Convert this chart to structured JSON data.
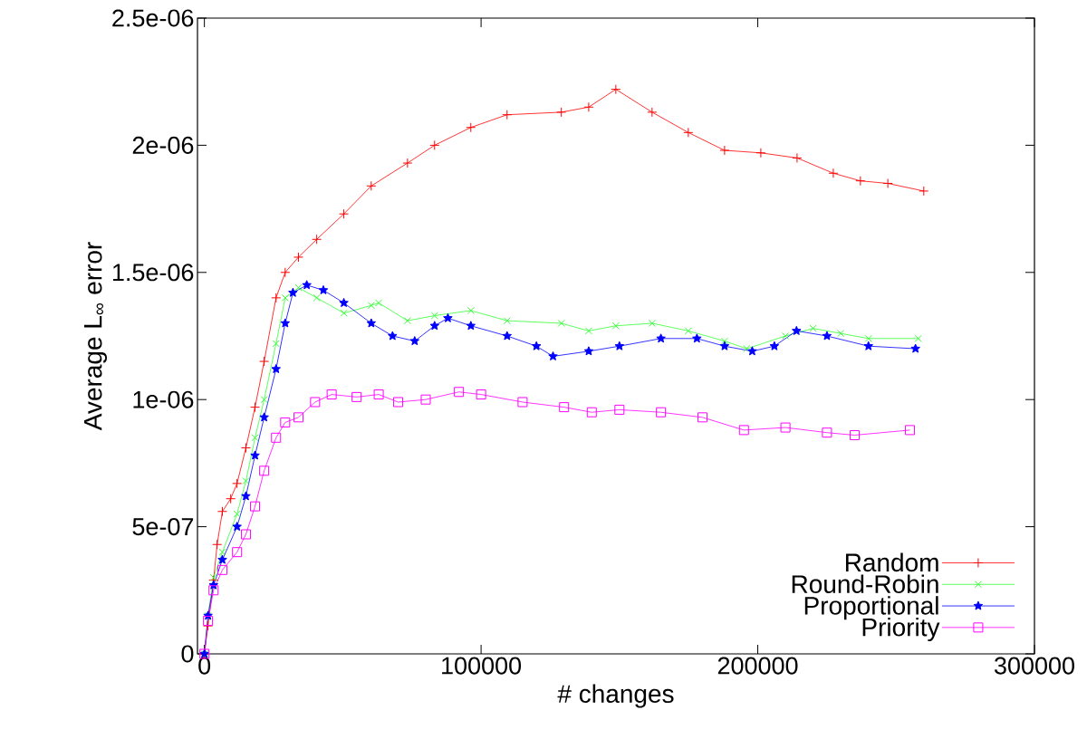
{
  "chart_data": {
    "type": "line",
    "xlabel": "# changes",
    "ylabel": "Average L$_{∞}$ error",
    "xlim": [
      -2500,
      300000
    ],
    "ylim": [
      0,
      2.5e-06
    ],
    "xticks": [
      0,
      100000,
      200000,
      300000
    ],
    "yticks": [
      {
        "value": 0,
        "label": "0"
      },
      {
        "value": 5e-07,
        "label": "5e-07"
      },
      {
        "value": 1e-06,
        "label": "1e-06"
      },
      {
        "value": 1.5e-06,
        "label": "1.5e-06"
      },
      {
        "value": 2e-06,
        "label": "2e-06"
      },
      {
        "value": 2.5e-06,
        "label": "2.5e-06"
      }
    ],
    "legend": "bottom right",
    "grid": false,
    "line_style": "solid",
    "series": [
      {
        "name": "Random",
        "color": "#ff0000",
        "marker": "plus",
        "x": [
          0,
          1300,
          3300,
          4600,
          6500,
          9500,
          11800,
          15000,
          18300,
          21600,
          25900,
          29200,
          34000,
          40600,
          50400,
          60300,
          73400,
          83200,
          96300,
          109400,
          129000,
          138900,
          148700,
          161800,
          174900,
          188000,
          201100,
          214200,
          227300,
          237100,
          247000,
          260000
        ],
        "values": [
          0,
          1.1e-07,
          2.9e-07,
          4.3e-07,
          5.6e-07,
          6.1e-07,
          6.7e-07,
          8.1e-07,
          9.7e-07,
          1.15e-06,
          1.4e-06,
          1.5e-06,
          1.56e-06,
          1.63e-06,
          1.73e-06,
          1.84e-06,
          1.93e-06,
          2e-06,
          2.07e-06,
          2.12e-06,
          2.13e-06,
          2.15e-06,
          2.22e-06,
          2.13e-06,
          2.05e-06,
          1.98e-06,
          1.97e-06,
          1.95e-06,
          1.89e-06,
          1.86e-06,
          1.85e-06,
          1.82e-06
        ]
      },
      {
        "name": "Round-Robin",
        "color": "#33ff33",
        "marker": "cross",
        "x": [
          0,
          1300,
          3300,
          6500,
          11800,
          15000,
          18300,
          21600,
          25900,
          29200,
          34000,
          40600,
          50400,
          60300,
          63000,
          73400,
          83200,
          96300,
          109400,
          129000,
          138900,
          148700,
          161800,
          174900,
          188000,
          196000,
          210000,
          220000,
          230000,
          240000,
          258000
        ],
        "values": [
          0,
          1.5e-07,
          3e-07,
          4e-07,
          5.5e-07,
          6.8e-07,
          8.5e-07,
          1e-06,
          1.22e-06,
          1.4e-06,
          1.44e-06,
          1.4e-06,
          1.34e-06,
          1.37e-06,
          1.38e-06,
          1.31e-06,
          1.33e-06,
          1.35e-06,
          1.31e-06,
          1.3e-06,
          1.27e-06,
          1.29e-06,
          1.3e-06,
          1.27e-06,
          1.23e-06,
          1.2e-06,
          1.25e-06,
          1.28e-06,
          1.26e-06,
          1.24e-06,
          1.24e-06
        ]
      },
      {
        "name": "Proportional",
        "color": "#0000ff",
        "marker": "star",
        "x": [
          0,
          1300,
          3300,
          6500,
          11800,
          15000,
          18300,
          21600,
          25900,
          29200,
          32000,
          37000,
          43000,
          50400,
          60300,
          68000,
          76000,
          83200,
          88000,
          96300,
          109400,
          120000,
          126000,
          138900,
          150000,
          165000,
          178000,
          188000,
          198000,
          206000,
          214000,
          225000,
          240000,
          257000
        ],
        "values": [
          0,
          1.5e-07,
          2.7e-07,
          3.7e-07,
          5e-07,
          6.2e-07,
          7.8e-07,
          9.3e-07,
          1.12e-06,
          1.3e-06,
          1.42e-06,
          1.45e-06,
          1.43e-06,
          1.38e-06,
          1.3e-06,
          1.25e-06,
          1.23e-06,
          1.29e-06,
          1.32e-06,
          1.29e-06,
          1.25e-06,
          1.21e-06,
          1.17e-06,
          1.19e-06,
          1.21e-06,
          1.24e-06,
          1.24e-06,
          1.21e-06,
          1.19e-06,
          1.21e-06,
          1.27e-06,
          1.25e-06,
          1.21e-06,
          1.2e-06
        ]
      },
      {
        "name": "Priority",
        "color": "#ff00ff",
        "marker": "square",
        "x": [
          0,
          1300,
          3300,
          6500,
          11800,
          15000,
          18300,
          21600,
          25900,
          29200,
          34000,
          40000,
          46000,
          55000,
          63000,
          70000,
          80000,
          92000,
          100000,
          115000,
          130000,
          140000,
          150000,
          165000,
          180000,
          195000,
          210000,
          225000,
          235000,
          255000
        ],
        "values": [
          0,
          1.3e-07,
          2.5e-07,
          3.3e-07,
          4e-07,
          4.7e-07,
          5.8e-07,
          7.2e-07,
          8.5e-07,
          9.1e-07,
          9.3e-07,
          9.9e-07,
          1.02e-06,
          1.01e-06,
          1.02e-06,
          9.9e-07,
          1e-06,
          1.03e-06,
          1.02e-06,
          9.9e-07,
          9.7e-07,
          9.5e-07,
          9.6e-07,
          9.5e-07,
          9.3e-07,
          8.8e-07,
          8.9e-07,
          8.7e-07,
          8.6e-07,
          8.8e-07
        ]
      }
    ]
  }
}
